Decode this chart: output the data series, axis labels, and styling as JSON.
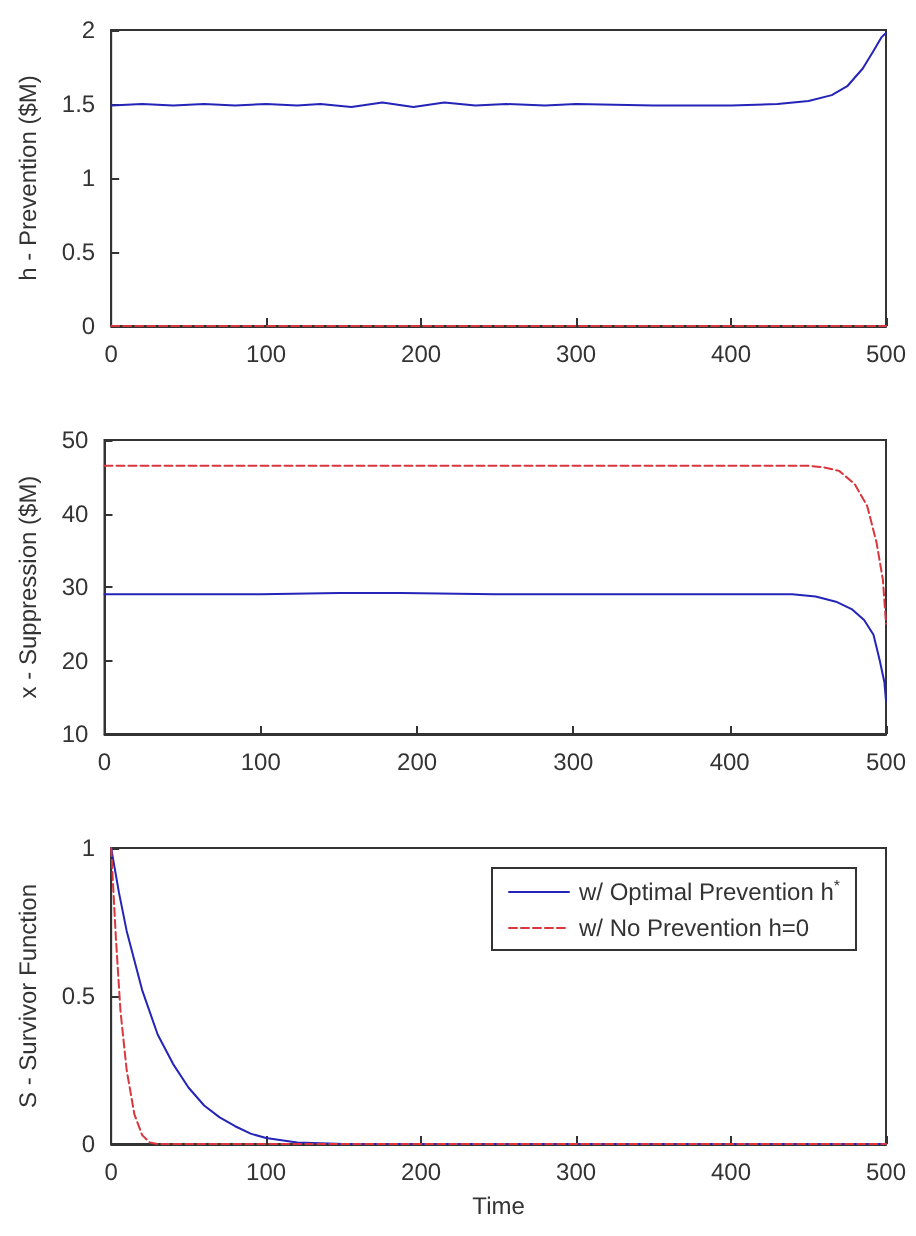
{
  "chart_data": [
    {
      "type": "line",
      "ylabel": "h - Prevention ($M)",
      "xlim": [
        0,
        500
      ],
      "xticks": [
        0,
        100,
        200,
        300,
        400,
        500
      ],
      "ylim": [
        0,
        2
      ],
      "yticks": [
        0,
        0.5,
        1,
        1.5,
        2
      ],
      "grid": false,
      "legend": false,
      "marker": "none",
      "series": [
        {
          "color": "#2424b8",
          "line_style": "solid",
          "x": [
            0,
            20,
            40,
            60,
            80,
            100,
            120,
            135,
            155,
            175,
            195,
            215,
            235,
            255,
            280,
            300,
            350,
            400,
            430,
            450,
            465,
            475,
            485,
            492,
            497,
            500
          ],
          "values": [
            1.49,
            1.5,
            1.49,
            1.5,
            1.49,
            1.5,
            1.49,
            1.5,
            1.48,
            1.51,
            1.48,
            1.51,
            1.49,
            1.5,
            1.49,
            1.5,
            1.49,
            1.49,
            1.5,
            1.52,
            1.56,
            1.62,
            1.74,
            1.86,
            1.95,
            1.98
          ]
        },
        {
          "color": "#d9363e",
          "line_style": "dashed",
          "x": [
            0,
            500
          ],
          "values": [
            0,
            0
          ]
        }
      ]
    },
    {
      "type": "line",
      "ylabel": "x - Suppression ($M)",
      "xlim": [
        0,
        500
      ],
      "xticks": [
        0,
        100,
        200,
        300,
        400,
        500
      ],
      "ylim": [
        10,
        50
      ],
      "yticks": [
        10,
        20,
        30,
        40,
        50
      ],
      "grid": false,
      "legend": false,
      "marker": "none",
      "series": [
        {
          "color": "#2424b8",
          "line_style": "solid",
          "x": [
            0,
            100,
            150,
            190,
            250,
            300,
            400,
            440,
            455,
            468,
            478,
            486,
            492,
            496,
            499,
            500
          ],
          "values": [
            29,
            29,
            29.2,
            29.2,
            29,
            29,
            29,
            29,
            28.7,
            28,
            27,
            25.5,
            23.5,
            20,
            17,
            14.5
          ]
        },
        {
          "color": "#d9363e",
          "line_style": "dashed",
          "x": [
            0,
            200,
            400,
            450,
            460,
            470,
            480,
            488,
            494,
            498,
            500
          ],
          "values": [
            46.5,
            46.5,
            46.5,
            46.5,
            46.3,
            45.8,
            44,
            41,
            36,
            31,
            25
          ]
        }
      ]
    },
    {
      "type": "line",
      "xlabel": "Time",
      "ylabel": "S - Survivor Function",
      "xlim": [
        0,
        500
      ],
      "xticks": [
        0,
        100,
        200,
        300,
        400,
        500
      ],
      "ylim": [
        0,
        1
      ],
      "yticks": [
        0,
        0.5,
        1
      ],
      "grid": false,
      "legend": "top right",
      "marker": "none",
      "series": [
        {
          "name": "w/ Optimal Prevention h$^{*}$",
          "color": "#2424b8",
          "line_style": "solid",
          "x": [
            0,
            5,
            10,
            20,
            30,
            40,
            50,
            60,
            70,
            80,
            90,
            100,
            120,
            150,
            500
          ],
          "values": [
            1,
            0.85,
            0.72,
            0.52,
            0.37,
            0.27,
            0.19,
            0.13,
            0.09,
            0.06,
            0.035,
            0.02,
            0.005,
            0,
            0
          ]
        },
        {
          "name": "w/ No Prevention h=0",
          "color": "#d9363e",
          "line_style": "dashed",
          "x": [
            0,
            3,
            6,
            10,
            15,
            20,
            25,
            30,
            500
          ],
          "values": [
            1,
            0.7,
            0.45,
            0.25,
            0.1,
            0.03,
            0.005,
            0,
            0
          ]
        }
      ]
    }
  ]
}
